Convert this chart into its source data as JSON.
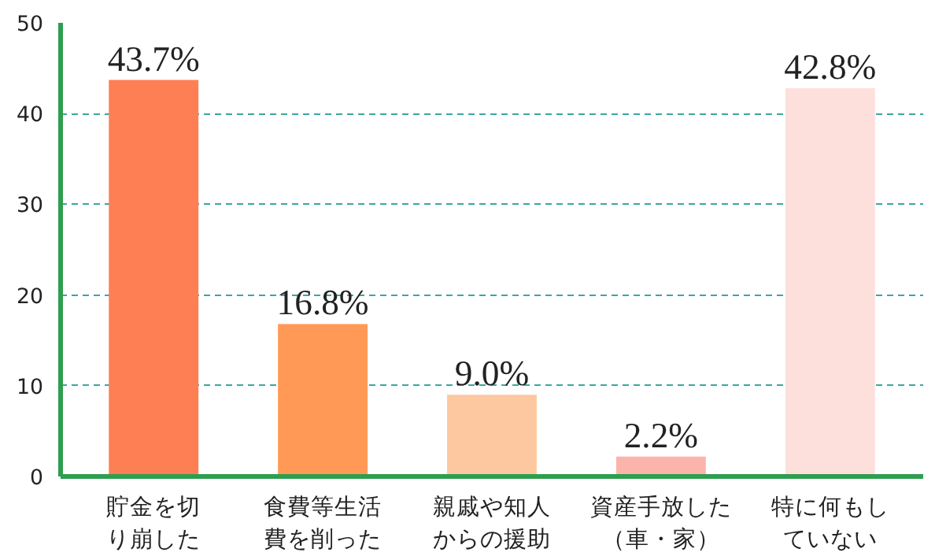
{
  "chart_data": {
    "type": "bar",
    "categories": [
      "貯金を切り崩した",
      "食費等生活費を削った",
      "親戚や知人からの援助",
      "資産手放した（車・家）",
      "特に何もしていない"
    ],
    "values": [
      43.7,
      16.8,
      9.0,
      2.2,
      42.8
    ],
    "value_labels": [
      "43.7%",
      "16.8%",
      "9.0%",
      "2.2%",
      "42.8%"
    ],
    "colors": [
      "#ff7f55",
      "#ff9955",
      "#fdc89f",
      "#fbb4ac",
      "#fde0dc"
    ],
    "ylim": [
      0,
      50
    ],
    "yticks": [
      0,
      10,
      20,
      30,
      40,
      50
    ],
    "grid": "y"
  }
}
